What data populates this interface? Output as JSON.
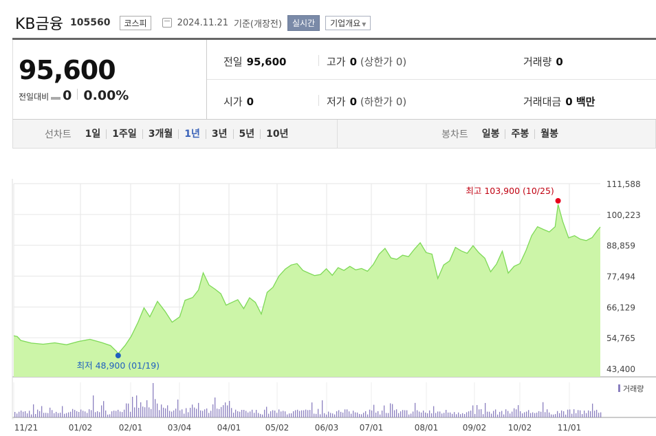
{
  "header": {
    "company_name": "KB금융",
    "stock_code": "105560",
    "market": "코스피",
    "date": "2024.11.21",
    "date_suffix": "기준(개장전)",
    "realtime_button": "실시간",
    "profile_button": "기업개요"
  },
  "quote": {
    "price": "95,600",
    "change_label": "전일대비",
    "change": "0",
    "change_pct": "0.00%"
  },
  "stats": {
    "prev_close_label": "전일",
    "prev_close": "95,600",
    "high_label": "고가",
    "high": "0",
    "high_sub": "(상한가 0)",
    "volume_label": "거래량",
    "volume": "0",
    "open_label": "시가",
    "open": "0",
    "low_label": "저가",
    "low": "0",
    "low_sub": "(하한가 0)",
    "amount_label": "거래대금",
    "amount": "0 백만"
  },
  "tabs": {
    "line_label": "선차트",
    "line_items": [
      "1일",
      "1주일",
      "3개월",
      "1년",
      "3년",
      "5년",
      "10년"
    ],
    "line_active": "1년",
    "candle_label": "봉차트",
    "candle_items": [
      "일봉",
      "주봉",
      "월봉"
    ]
  },
  "chart_data": {
    "type": "area",
    "fill_color": "#ccf5a8",
    "line_color": "#7ed957",
    "y_ticks": [
      "111,588",
      "100,223",
      "88,859",
      "77,494",
      "66,129",
      "54,765",
      "43,400"
    ],
    "ylim": [
      43400,
      111588
    ],
    "x_ticks": [
      "11/21",
      "01/02",
      "02/01",
      "03/04",
      "04/01",
      "05/02",
      "06/03",
      "07/01",
      "08/01",
      "09/02",
      "10/02",
      "11/01"
    ],
    "max_label": "최고 103,900 (10/25)",
    "min_label": "최저 48,900 (01/19)",
    "volume_label": "거래량",
    "price_anchors": [
      [
        0,
        55500
      ],
      [
        0.006,
        55200
      ],
      [
        0.012,
        53800
      ],
      [
        0.03,
        52800
      ],
      [
        0.05,
        52400
      ],
      [
        0.07,
        52900
      ],
      [
        0.09,
        52200
      ],
      [
        0.11,
        53400
      ],
      [
        0.13,
        54200
      ],
      [
        0.15,
        53000
      ],
      [
        0.165,
        51900
      ],
      [
        0.175,
        49800
      ],
      [
        0.178,
        48900
      ],
      [
        0.19,
        52000
      ],
      [
        0.2,
        55200
      ],
      [
        0.212,
        60500
      ],
      [
        0.222,
        65800
      ],
      [
        0.232,
        62500
      ],
      [
        0.245,
        68200
      ],
      [
        0.258,
        64500
      ],
      [
        0.27,
        60500
      ],
      [
        0.283,
        62500
      ],
      [
        0.292,
        68600
      ],
      [
        0.305,
        69600
      ],
      [
        0.315,
        72400
      ],
      [
        0.323,
        78700
      ],
      [
        0.333,
        74200
      ],
      [
        0.343,
        72700
      ],
      [
        0.353,
        71000
      ],
      [
        0.362,
        66800
      ],
      [
        0.372,
        67800
      ],
      [
        0.382,
        68800
      ],
      [
        0.392,
        65500
      ],
      [
        0.402,
        69500
      ],
      [
        0.412,
        67800
      ],
      [
        0.422,
        63500
      ],
      [
        0.432,
        71500
      ],
      [
        0.442,
        73400
      ],
      [
        0.452,
        77500
      ],
      [
        0.463,
        80100
      ],
      [
        0.473,
        81600
      ],
      [
        0.483,
        82100
      ],
      [
        0.493,
        79600
      ],
      [
        0.503,
        78600
      ],
      [
        0.513,
        77700
      ],
      [
        0.523,
        78100
      ],
      [
        0.533,
        80200
      ],
      [
        0.543,
        77800
      ],
      [
        0.553,
        80600
      ],
      [
        0.563,
        79600
      ],
      [
        0.573,
        81100
      ],
      [
        0.583,
        79800
      ],
      [
        0.593,
        80300
      ],
      [
        0.603,
        79300
      ],
      [
        0.613,
        81800
      ],
      [
        0.623,
        85600
      ],
      [
        0.633,
        87700
      ],
      [
        0.643,
        84200
      ],
      [
        0.653,
        83700
      ],
      [
        0.663,
        85200
      ],
      [
        0.673,
        84700
      ],
      [
        0.683,
        87400
      ],
      [
        0.693,
        89800
      ],
      [
        0.703,
        86200
      ],
      [
        0.713,
        85600
      ],
      [
        0.723,
        76600
      ],
      [
        0.733,
        81600
      ],
      [
        0.743,
        83100
      ],
      [
        0.753,
        88100
      ],
      [
        0.763,
        86800
      ],
      [
        0.773,
        85900
      ],
      [
        0.783,
        88700
      ],
      [
        0.793,
        86100
      ],
      [
        0.803,
        84100
      ],
      [
        0.813,
        79100
      ],
      [
        0.823,
        81900
      ],
      [
        0.833,
        86700
      ],
      [
        0.843,
        78600
      ],
      [
        0.853,
        81100
      ],
      [
        0.863,
        82100
      ],
      [
        0.873,
        86800
      ],
      [
        0.883,
        92400
      ],
      [
        0.893,
        95700
      ],
      [
        0.903,
        94700
      ],
      [
        0.913,
        93800
      ],
      [
        0.923,
        95700
      ],
      [
        0.928,
        103900
      ],
      [
        0.936,
        97600
      ],
      [
        0.946,
        91600
      ],
      [
        0.956,
        92400
      ],
      [
        0.966,
        91100
      ],
      [
        0.976,
        90600
      ],
      [
        0.986,
        91700
      ],
      [
        0.995,
        94300
      ],
      [
        1.0,
        95600
      ]
    ]
  }
}
